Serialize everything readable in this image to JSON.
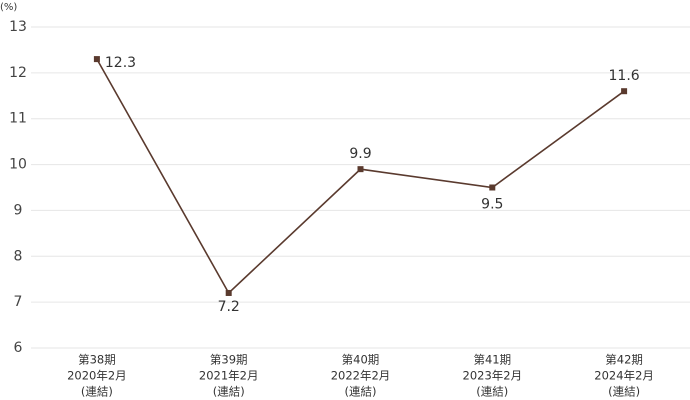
{
  "chart_data": {
    "type": "line",
    "y_unit": "(%)",
    "categories": [
      [
        "第38期",
        "2020年2月",
        "(連結)"
      ],
      [
        "第39期",
        "2021年2月",
        "(連結)"
      ],
      [
        "第40期",
        "2022年2月",
        "(連結)"
      ],
      [
        "第41期",
        "2023年2月",
        "(連結)"
      ],
      [
        "第42期",
        "2024年2月",
        "(連結)"
      ]
    ],
    "values": [
      12.3,
      7.2,
      9.9,
      9.5,
      11.6
    ],
    "color": "#5a3a2e",
    "ylim": [
      6,
      13
    ],
    "yticks": [
      6,
      7,
      8,
      9,
      10,
      11,
      12,
      13
    ],
    "grid": true
  }
}
